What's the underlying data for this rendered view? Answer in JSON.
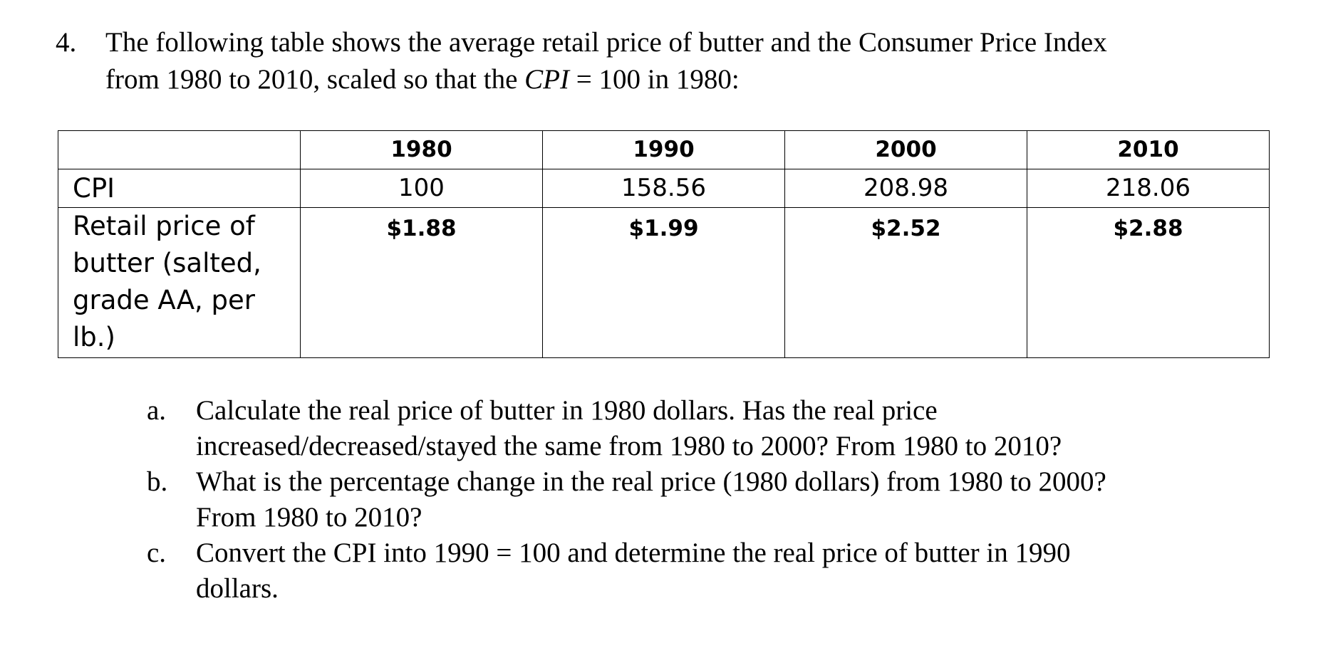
{
  "question": {
    "number": "4.",
    "line1": "The following table shows the average retail price of butter and the Consumer Price Index",
    "line2_pre": "from 1980 to 2010, scaled so that the ",
    "line2_math": "CPI",
    "line2_post": " = 100 in 1980:"
  },
  "table": {
    "header_blank": "",
    "years": [
      "1980",
      "1990",
      "2000",
      "2010"
    ],
    "cpi_label": "CPI",
    "cpi_values": [
      "100",
      "158.56",
      "208.98",
      "218.06"
    ],
    "butter_label_lines": [
      "Retail price of",
      "butter (salted,",
      "grade AA, per",
      "lb.)"
    ],
    "butter_prices": [
      "$1.88",
      "$1.99",
      "$2.52",
      "$2.88"
    ]
  },
  "subquestions": [
    {
      "letter": "a.",
      "lines": [
        "Calculate the real price of butter in 1980 dollars. Has the real price",
        "increased/decreased/stayed the same from 1980 to 2000? From 1980 to 2010?"
      ]
    },
    {
      "letter": "b.",
      "lines": [
        "What is the percentage change in the real price (1980 dollars) from 1980 to 2000?",
        "From 1980 to 2010?"
      ]
    },
    {
      "letter": "c.",
      "lines": [
        "Convert the CPI into 1990 = 100 and determine the real price of butter in 1990",
        "dollars."
      ]
    }
  ]
}
